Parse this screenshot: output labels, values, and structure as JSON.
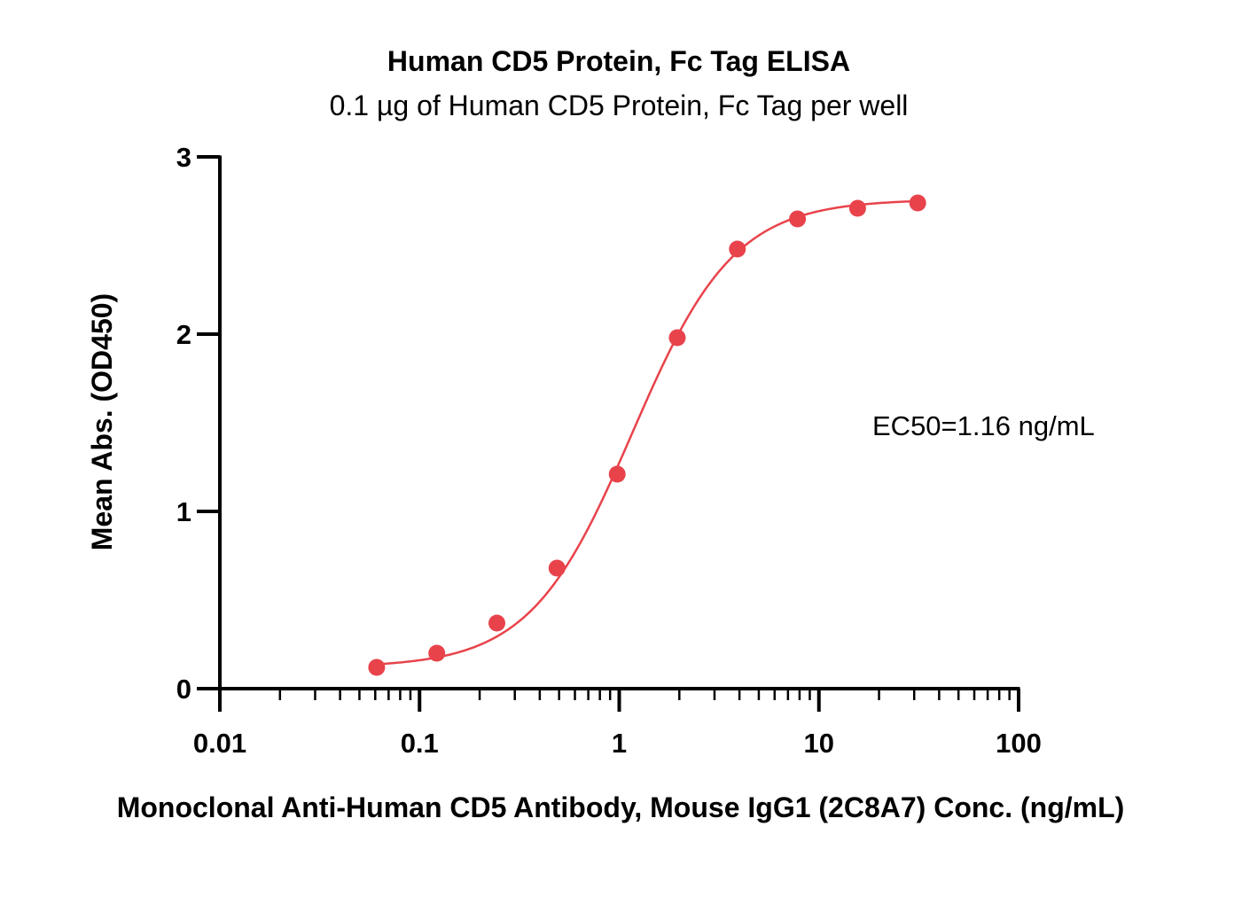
{
  "chart_data": {
    "type": "scatter",
    "title": "Human CD5 Protein, Fc Tag ELISA",
    "subtitle": "0.1 µg of Human CD5 Protein, Fc Tag per well",
    "xlabel": "Monoclonal Anti-Human CD5 Antibody, Mouse IgG1 (2C8A7) Conc. (ng/mL)",
    "ylabel": "Mean Abs. (OD450)",
    "x_scale": "log",
    "xlim": [
      0.01,
      100
    ],
    "ylim": [
      0,
      3
    ],
    "x_ticks": [
      "0.01",
      "0.1",
      "1",
      "10",
      "100"
    ],
    "y_ticks": [
      "0",
      "1",
      "2",
      "3"
    ],
    "grid": false,
    "series": [
      {
        "color": "#E8434B",
        "x": [
          0.061,
          0.122,
          0.244,
          0.488,
          0.977,
          1.953,
          3.906,
          7.813,
          15.625,
          31.25
        ],
        "y": [
          0.12,
          0.2,
          0.37,
          0.68,
          1.21,
          1.98,
          2.48,
          2.65,
          2.71,
          2.74
        ]
      }
    ],
    "fit_curve": {
      "model": "4PL",
      "bottom": 0.12,
      "top": 2.76,
      "ec50": 1.16,
      "hill": 1.7,
      "x_range": [
        0.061,
        31.25
      ]
    },
    "annotations": [
      {
        "text": "EC50=1.16 ng/mL"
      }
    ]
  }
}
